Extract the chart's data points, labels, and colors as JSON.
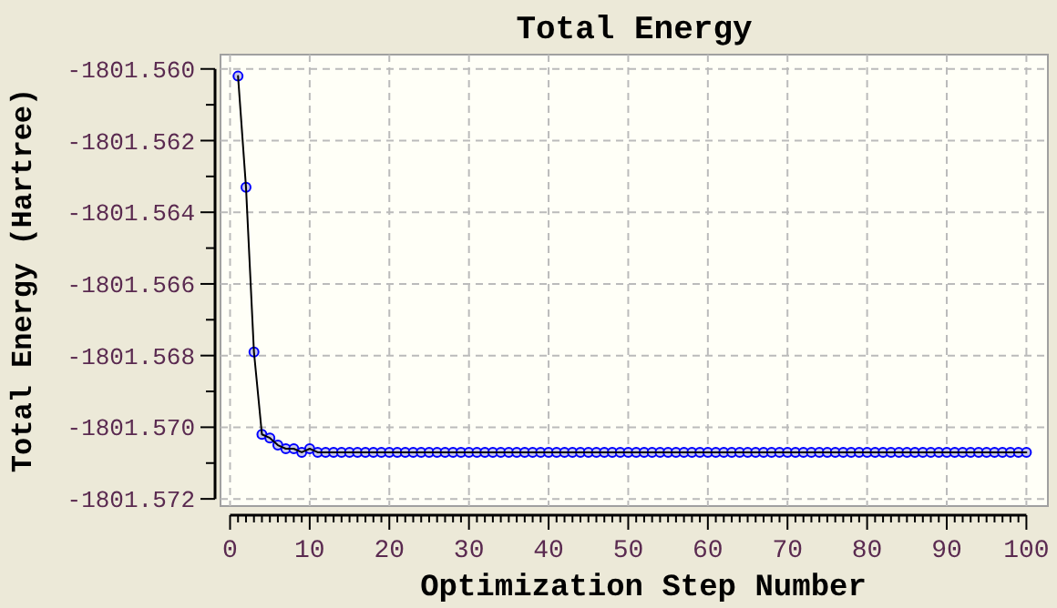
{
  "chart_data": {
    "type": "line",
    "title": "Total Energy",
    "xlabel": "Optimization Step Number",
    "ylabel": "Total Energy (Hartree)",
    "x": [
      1,
      2,
      3,
      4,
      5,
      6,
      7,
      8,
      9,
      10,
      11,
      12,
      13,
      14,
      15,
      16,
      17,
      18,
      19,
      20,
      21,
      22,
      23,
      24,
      25,
      26,
      27,
      28,
      29,
      30,
      31,
      32,
      33,
      34,
      35,
      36,
      37,
      38,
      39,
      40,
      41,
      42,
      43,
      44,
      45,
      46,
      47,
      48,
      49,
      50,
      51,
      52,
      53,
      54,
      55,
      56,
      57,
      58,
      59,
      60,
      61,
      62,
      63,
      64,
      65,
      66,
      67,
      68,
      69,
      70,
      71,
      72,
      73,
      74,
      75,
      76,
      77,
      78,
      79,
      80,
      81,
      82,
      83,
      84,
      85,
      86,
      87,
      88,
      89,
      90,
      91,
      92,
      93,
      94,
      95,
      96,
      97,
      98,
      99,
      100
    ],
    "series": [
      {
        "color": "#0000ff",
        "values": [
          -1801.5602,
          -1801.5633,
          -1801.5679,
          -1801.5702,
          -1801.5703,
          -1801.5705,
          -1801.5706,
          -1801.5706,
          -1801.5707,
          -1801.5706,
          -1801.5707,
          -1801.5707,
          -1801.5707,
          -1801.5707,
          -1801.5707,
          -1801.5707,
          -1801.5707,
          -1801.5707,
          -1801.5707,
          -1801.5707,
          -1801.5707,
          -1801.5707,
          -1801.5707,
          -1801.5707,
          -1801.5707,
          -1801.5707,
          -1801.5707,
          -1801.5707,
          -1801.5707,
          -1801.5707,
          -1801.5707,
          -1801.5707,
          -1801.5707,
          -1801.5707,
          -1801.5707,
          -1801.5707,
          -1801.5707,
          -1801.5707,
          -1801.5707,
          -1801.5707,
          -1801.5707,
          -1801.5707,
          -1801.5707,
          -1801.5707,
          -1801.5707,
          -1801.5707,
          -1801.5707,
          -1801.5707,
          -1801.5707,
          -1801.5707,
          -1801.5707,
          -1801.5707,
          -1801.5707,
          -1801.5707,
          -1801.5707,
          -1801.5707,
          -1801.5707,
          -1801.5707,
          -1801.5707,
          -1801.5707,
          -1801.5707,
          -1801.5707,
          -1801.5707,
          -1801.5707,
          -1801.5707,
          -1801.5707,
          -1801.5707,
          -1801.5707,
          -1801.5707,
          -1801.5707,
          -1801.5707,
          -1801.5707,
          -1801.5707,
          -1801.5707,
          -1801.5707,
          -1801.5707,
          -1801.5707,
          -1801.5707,
          -1801.5707,
          -1801.5707,
          -1801.5707,
          -1801.5707,
          -1801.5707,
          -1801.5707,
          -1801.5707,
          -1801.5707,
          -1801.5707,
          -1801.5707,
          -1801.5707,
          -1801.5707,
          -1801.5707,
          -1801.5707,
          -1801.5707,
          -1801.5707,
          -1801.5707,
          -1801.5707,
          -1801.5707,
          -1801.5707,
          -1801.5707,
          -1801.5707
        ]
      }
    ],
    "xlim": [
      -1.2,
      102.7
    ],
    "xticks": [
      0,
      10,
      20,
      30,
      40,
      50,
      60,
      70,
      80,
      90,
      100
    ],
    "ylim": [
      -1801.5722,
      -1801.5596
    ],
    "yticks": [
      {
        "value": -1801.56,
        "label": "-1801.560"
      },
      {
        "value": -1801.562,
        "label": "-1801.562"
      },
      {
        "value": -1801.564,
        "label": "-1801.564"
      },
      {
        "value": -1801.566,
        "label": "-1801.566"
      },
      {
        "value": -1801.568,
        "label": "-1801.568"
      },
      {
        "value": -1801.57,
        "label": "-1801.570"
      },
      {
        "value": -1801.572,
        "label": "-1801.572"
      }
    ],
    "grid": true,
    "marker": "circle",
    "line_style": "solid"
  }
}
